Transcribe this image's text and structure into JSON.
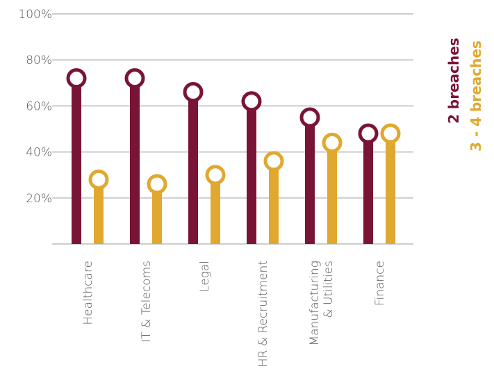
{
  "chart_data": {
    "type": "lollipop",
    "categories": [
      "Healthcare",
      "IT & Telecoms",
      "Legal",
      "HR & Recruitment",
      "Manufacturing\n& Utilities",
      "Finance"
    ],
    "series": [
      {
        "name": "2 breaches",
        "color": "#7a1436",
        "values": [
          72,
          72,
          66,
          62,
          55,
          48
        ]
      },
      {
        "name": "3 - 4 breaches",
        "color": "#e0a82e",
        "values": [
          28,
          26,
          30,
          36,
          44,
          48
        ]
      }
    ],
    "ylim": [
      0,
      100
    ],
    "yticks": [
      {
        "value": 20,
        "label": "20%"
      },
      {
        "value": 40,
        "label": "40%"
      },
      {
        "value": 60,
        "label": "60%"
      },
      {
        "value": 80,
        "label": "80%"
      },
      {
        "value": 100,
        "label": "100%"
      }
    ],
    "grid": true
  }
}
